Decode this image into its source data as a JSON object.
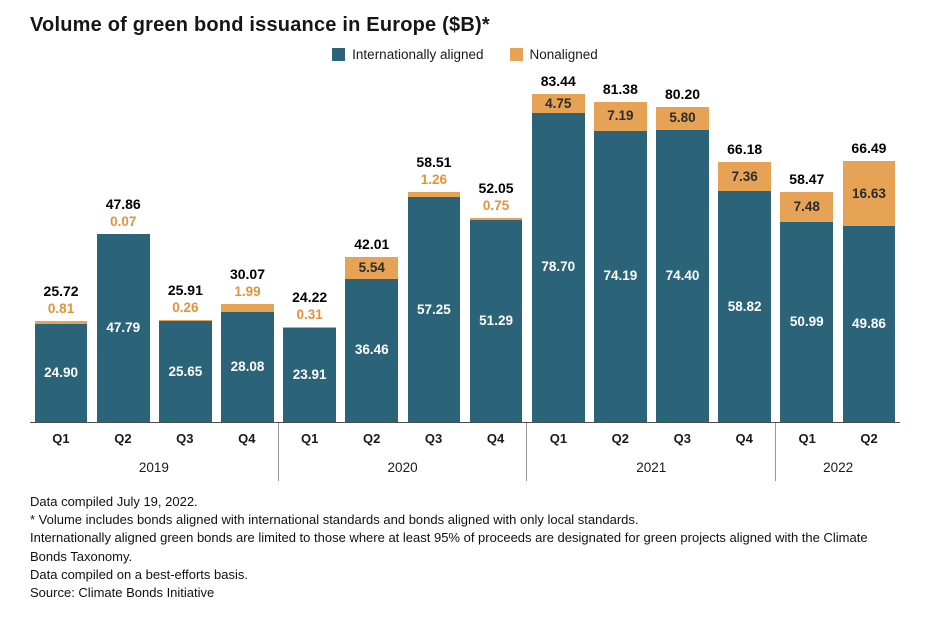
{
  "title": "Volume of green bond issuance in Europe ($B)*",
  "colors": {
    "internationally_aligned": "#2b6478",
    "nonaligned": "#e6a355",
    "nonaligned_label_text": "#e2923a",
    "axis_line": "#4d4d4d",
    "group_separator": "#9a9a9a"
  },
  "chart_data": {
    "type": "bar",
    "stacked": true,
    "title": "Volume of green bond issuance in Europe ($B)*",
    "legend_position": "top-center",
    "ymax": 84,
    "grid": false,
    "year_groups": [
      {
        "year": "2019",
        "quarters": [
          "Q1",
          "Q2",
          "Q3",
          "Q4"
        ]
      },
      {
        "year": "2020",
        "quarters": [
          "Q1",
          "Q2",
          "Q3",
          "Q4"
        ]
      },
      {
        "year": "2021",
        "quarters": [
          "Q1",
          "Q2",
          "Q3",
          "Q4"
        ]
      },
      {
        "year": "2022",
        "quarters": [
          "Q1",
          "Q2"
        ]
      }
    ],
    "series": [
      {
        "name": "Internationally aligned",
        "color": "#2b6478",
        "values": [
          "24.90",
          "47.79",
          "25.65",
          "28.08",
          "23.91",
          "36.46",
          "57.25",
          "51.29",
          "78.70",
          "74.19",
          "74.40",
          "58.82",
          "50.99",
          "49.86"
        ]
      },
      {
        "name": "Nonaligned",
        "color": "#e6a355",
        "values": [
          "0.81",
          "0.07",
          "0.26",
          "1.99",
          "0.31",
          "5.54",
          "1.26",
          "0.75",
          "4.75",
          "7.19",
          "5.80",
          "7.36",
          "7.48",
          "16.63"
        ]
      }
    ],
    "totals": [
      "25.72",
      "47.86",
      "25.91",
      "30.07",
      "24.22",
      "42.01",
      "58.51",
      "52.05",
      "83.44",
      "81.38",
      "80.20",
      "66.18",
      "58.47",
      "66.49"
    ]
  },
  "footnotes": [
    "Data compiled July 19, 2022.",
    "* Volume includes bonds aligned with international standards and bonds aligned with only local standards.",
    "Internationally aligned green bonds are limited to those where at least 95% of proceeds are designated for green projects aligned with the Climate Bonds Taxonomy.",
    "Data compiled on a best-efforts basis.",
    "Source: Climate Bonds Initiative"
  ]
}
